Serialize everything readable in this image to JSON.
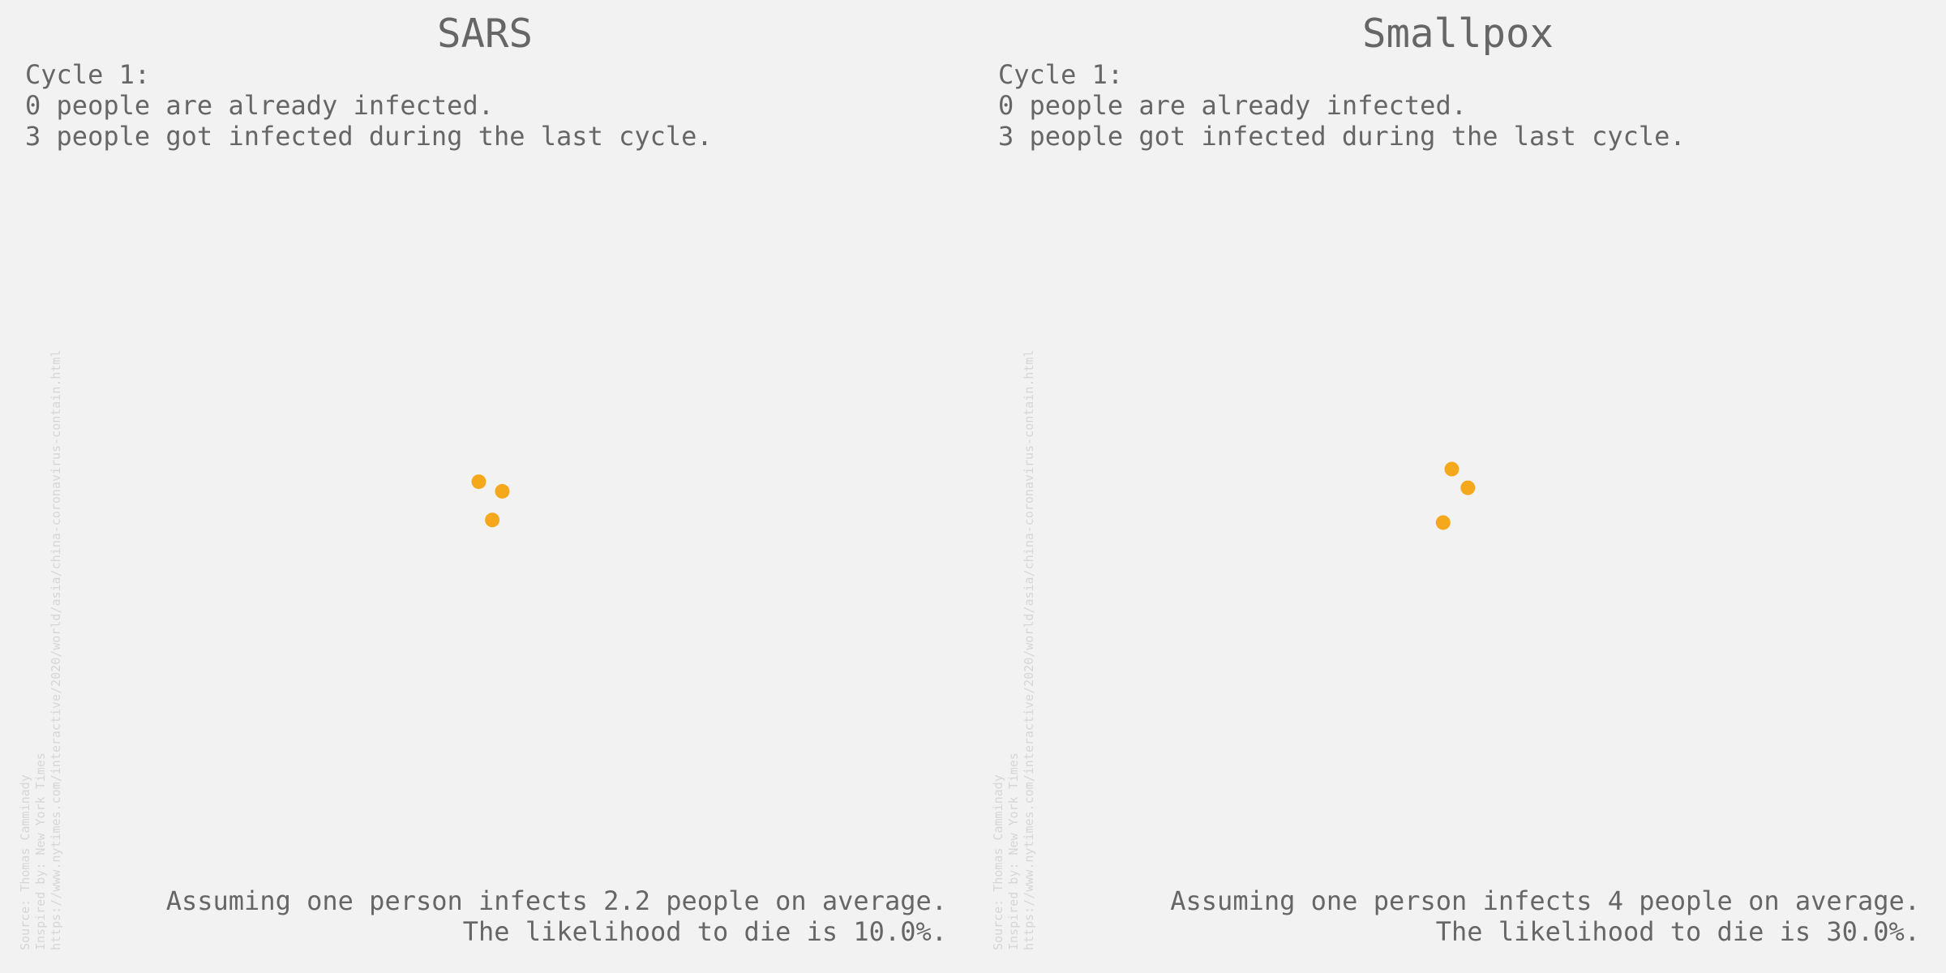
{
  "chart_data": [
    {
      "type": "scatter",
      "title": "SARS",
      "header": [
        "Cycle 1:",
        "0 people are already infected.",
        "3 people got infected during the last cycle."
      ],
      "footer": [
        "Assuming one person infects 2.2 people on average.",
        "The likelihood to die is 10.0%."
      ],
      "source": [
        "Source: Thomas Camminady",
        "Inspired by: New York Times",
        "https://www.nytimes.com/interactive/2020/world/asia/china-coronavirus-contain.html"
      ],
      "x": [
        -0.014,
        0.04,
        0.017
      ],
      "y": [
        0.011,
        -0.011,
        -0.077
      ],
      "color": "#f5a81c",
      "xlim": [
        -1,
        1
      ],
      "ylim": [
        -1,
        1
      ]
    },
    {
      "type": "scatter",
      "title": "Smallpox",
      "header": [
        "Cycle 1:",
        "0 people are already infected.",
        "3 people got infected during the last cycle."
      ],
      "footer": [
        "Assuming one person infects 4 people on average.",
        "The likelihood to die is 30.0%."
      ],
      "source": [
        "Source: Thomas Camminady",
        "Inspired by: New York Times",
        "https://www.nytimes.com/interactive/2020/world/asia/china-coronavirus-contain.html"
      ],
      "x": [
        -0.014,
        0.023,
        -0.034
      ],
      "y": [
        0.04,
        -0.003,
        -0.083
      ],
      "color": "#f5a81c",
      "xlim": [
        -1,
        1
      ],
      "ylim": [
        -1,
        1
      ]
    }
  ]
}
